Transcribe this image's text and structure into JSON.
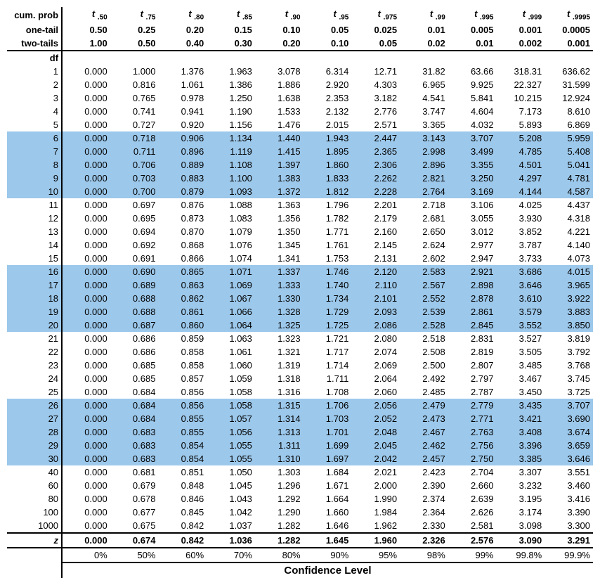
{
  "headers": {
    "cum_prob_label": "cum. prob",
    "one_tail_label": "one-tail",
    "two_tails_label": "two-tails",
    "df_label": "df",
    "t_subs": [
      ".50",
      ".75",
      ".80",
      ".85",
      ".90",
      ".95",
      ".975",
      ".99",
      ".995",
      ".999",
      ".9995"
    ],
    "one_tail": [
      "0.50",
      "0.25",
      "0.20",
      "0.15",
      "0.10",
      "0.05",
      "0.025",
      "0.01",
      "0.005",
      "0.001",
      "0.0005"
    ],
    "two_tails": [
      "1.00",
      "0.50",
      "0.40",
      "0.30",
      "0.20",
      "0.10",
      "0.05",
      "0.02",
      "0.01",
      "0.002",
      "0.001"
    ]
  },
  "highlight_color": "#9cc8eb",
  "highlighted_df": [
    6,
    7,
    8,
    9,
    10,
    16,
    17,
    18,
    19,
    20,
    26,
    27,
    28,
    29,
    30
  ],
  "rows": [
    {
      "df": "1",
      "v": [
        "0.000",
        "1.000",
        "1.376",
        "1.963",
        "3.078",
        "6.314",
        "12.71",
        "31.82",
        "63.66",
        "318.31",
        "636.62"
      ]
    },
    {
      "df": "2",
      "v": [
        "0.000",
        "0.816",
        "1.061",
        "1.386",
        "1.886",
        "2.920",
        "4.303",
        "6.965",
        "9.925",
        "22.327",
        "31.599"
      ]
    },
    {
      "df": "3",
      "v": [
        "0.000",
        "0.765",
        "0.978",
        "1.250",
        "1.638",
        "2.353",
        "3.182",
        "4.541",
        "5.841",
        "10.215",
        "12.924"
      ]
    },
    {
      "df": "4",
      "v": [
        "0.000",
        "0.741",
        "0.941",
        "1.190",
        "1.533",
        "2.132",
        "2.776",
        "3.747",
        "4.604",
        "7.173",
        "8.610"
      ]
    },
    {
      "df": "5",
      "v": [
        "0.000",
        "0.727",
        "0.920",
        "1.156",
        "1.476",
        "2.015",
        "2.571",
        "3.365",
        "4.032",
        "5.893",
        "6.869"
      ]
    },
    {
      "df": "6",
      "v": [
        "0.000",
        "0.718",
        "0.906",
        "1.134",
        "1.440",
        "1.943",
        "2.447",
        "3.143",
        "3.707",
        "5.208",
        "5.959"
      ]
    },
    {
      "df": "7",
      "v": [
        "0.000",
        "0.711",
        "0.896",
        "1.119",
        "1.415",
        "1.895",
        "2.365",
        "2.998",
        "3.499",
        "4.785",
        "5.408"
      ]
    },
    {
      "df": "8",
      "v": [
        "0.000",
        "0.706",
        "0.889",
        "1.108",
        "1.397",
        "1.860",
        "2.306",
        "2.896",
        "3.355",
        "4.501",
        "5.041"
      ]
    },
    {
      "df": "9",
      "v": [
        "0.000",
        "0.703",
        "0.883",
        "1.100",
        "1.383",
        "1.833",
        "2.262",
        "2.821",
        "3.250",
        "4.297",
        "4.781"
      ]
    },
    {
      "df": "10",
      "v": [
        "0.000",
        "0.700",
        "0.879",
        "1.093",
        "1.372",
        "1.812",
        "2.228",
        "2.764",
        "3.169",
        "4.144",
        "4.587"
      ]
    },
    {
      "df": "11",
      "v": [
        "0.000",
        "0.697",
        "0.876",
        "1.088",
        "1.363",
        "1.796",
        "2.201",
        "2.718",
        "3.106",
        "4.025",
        "4.437"
      ]
    },
    {
      "df": "12",
      "v": [
        "0.000",
        "0.695",
        "0.873",
        "1.083",
        "1.356",
        "1.782",
        "2.179",
        "2.681",
        "3.055",
        "3.930",
        "4.318"
      ]
    },
    {
      "df": "13",
      "v": [
        "0.000",
        "0.694",
        "0.870",
        "1.079",
        "1.350",
        "1.771",
        "2.160",
        "2.650",
        "3.012",
        "3.852",
        "4.221"
      ]
    },
    {
      "df": "14",
      "v": [
        "0.000",
        "0.692",
        "0.868",
        "1.076",
        "1.345",
        "1.761",
        "2.145",
        "2.624",
        "2.977",
        "3.787",
        "4.140"
      ]
    },
    {
      "df": "15",
      "v": [
        "0.000",
        "0.691",
        "0.866",
        "1.074",
        "1.341",
        "1.753",
        "2.131",
        "2.602",
        "2.947",
        "3.733",
        "4.073"
      ]
    },
    {
      "df": "16",
      "v": [
        "0.000",
        "0.690",
        "0.865",
        "1.071",
        "1.337",
        "1.746",
        "2.120",
        "2.583",
        "2.921",
        "3.686",
        "4.015"
      ]
    },
    {
      "df": "17",
      "v": [
        "0.000",
        "0.689",
        "0.863",
        "1.069",
        "1.333",
        "1.740",
        "2.110",
        "2.567",
        "2.898",
        "3.646",
        "3.965"
      ]
    },
    {
      "df": "18",
      "v": [
        "0.000",
        "0.688",
        "0.862",
        "1.067",
        "1.330",
        "1.734",
        "2.101",
        "2.552",
        "2.878",
        "3.610",
        "3.922"
      ]
    },
    {
      "df": "19",
      "v": [
        "0.000",
        "0.688",
        "0.861",
        "1.066",
        "1.328",
        "1.729",
        "2.093",
        "2.539",
        "2.861",
        "3.579",
        "3.883"
      ]
    },
    {
      "df": "20",
      "v": [
        "0.000",
        "0.687",
        "0.860",
        "1.064",
        "1.325",
        "1.725",
        "2.086",
        "2.528",
        "2.845",
        "3.552",
        "3.850"
      ]
    },
    {
      "df": "21",
      "v": [
        "0.000",
        "0.686",
        "0.859",
        "1.063",
        "1.323",
        "1.721",
        "2.080",
        "2.518",
        "2.831",
        "3.527",
        "3.819"
      ]
    },
    {
      "df": "22",
      "v": [
        "0.000",
        "0.686",
        "0.858",
        "1.061",
        "1.321",
        "1.717",
        "2.074",
        "2.508",
        "2.819",
        "3.505",
        "3.792"
      ]
    },
    {
      "df": "23",
      "v": [
        "0.000",
        "0.685",
        "0.858",
        "1.060",
        "1.319",
        "1.714",
        "2.069",
        "2.500",
        "2.807",
        "3.485",
        "3.768"
      ]
    },
    {
      "df": "24",
      "v": [
        "0.000",
        "0.685",
        "0.857",
        "1.059",
        "1.318",
        "1.711",
        "2.064",
        "2.492",
        "2.797",
        "3.467",
        "3.745"
      ]
    },
    {
      "df": "25",
      "v": [
        "0.000",
        "0.684",
        "0.856",
        "1.058",
        "1.316",
        "1.708",
        "2.060",
        "2.485",
        "2.787",
        "3.450",
        "3.725"
      ]
    },
    {
      "df": "26",
      "v": [
        "0.000",
        "0.684",
        "0.856",
        "1.058",
        "1.315",
        "1.706",
        "2.056",
        "2.479",
        "2.779",
        "3.435",
        "3.707"
      ]
    },
    {
      "df": "27",
      "v": [
        "0.000",
        "0.684",
        "0.855",
        "1.057",
        "1.314",
        "1.703",
        "2.052",
        "2.473",
        "2.771",
        "3.421",
        "3.690"
      ]
    },
    {
      "df": "28",
      "v": [
        "0.000",
        "0.683",
        "0.855",
        "1.056",
        "1.313",
        "1.701",
        "2.048",
        "2.467",
        "2.763",
        "3.408",
        "3.674"
      ]
    },
    {
      "df": "29",
      "v": [
        "0.000",
        "0.683",
        "0.854",
        "1.055",
        "1.311",
        "1.699",
        "2.045",
        "2.462",
        "2.756",
        "3.396",
        "3.659"
      ]
    },
    {
      "df": "30",
      "v": [
        "0.000",
        "0.683",
        "0.854",
        "1.055",
        "1.310",
        "1.697",
        "2.042",
        "2.457",
        "2.750",
        "3.385",
        "3.646"
      ]
    },
    {
      "df": "40",
      "v": [
        "0.000",
        "0.681",
        "0.851",
        "1.050",
        "1.303",
        "1.684",
        "2.021",
        "2.423",
        "2.704",
        "3.307",
        "3.551"
      ]
    },
    {
      "df": "60",
      "v": [
        "0.000",
        "0.679",
        "0.848",
        "1.045",
        "1.296",
        "1.671",
        "2.000",
        "2.390",
        "2.660",
        "3.232",
        "3.460"
      ]
    },
    {
      "df": "80",
      "v": [
        "0.000",
        "0.678",
        "0.846",
        "1.043",
        "1.292",
        "1.664",
        "1.990",
        "2.374",
        "2.639",
        "3.195",
        "3.416"
      ]
    },
    {
      "df": "100",
      "v": [
        "0.000",
        "0.677",
        "0.845",
        "1.042",
        "1.290",
        "1.660",
        "1.984",
        "2.364",
        "2.626",
        "3.174",
        "3.390"
      ]
    },
    {
      "df": "1000",
      "v": [
        "0.000",
        "0.675",
        "0.842",
        "1.037",
        "1.282",
        "1.646",
        "1.962",
        "2.330",
        "2.581",
        "3.098",
        "3.300"
      ]
    }
  ],
  "z_row": {
    "label": "z",
    "v": [
      "0.000",
      "0.674",
      "0.842",
      "1.036",
      "1.282",
      "1.645",
      "1.960",
      "2.326",
      "2.576",
      "3.090",
      "3.291"
    ]
  },
  "confidence": {
    "label": "Confidence Level",
    "values": [
      "",
      "0%",
      "50%",
      "60%",
      "70%",
      "80%",
      "90%",
      "95%",
      "98%",
      "99%",
      "99.8%",
      "99.9%"
    ]
  }
}
